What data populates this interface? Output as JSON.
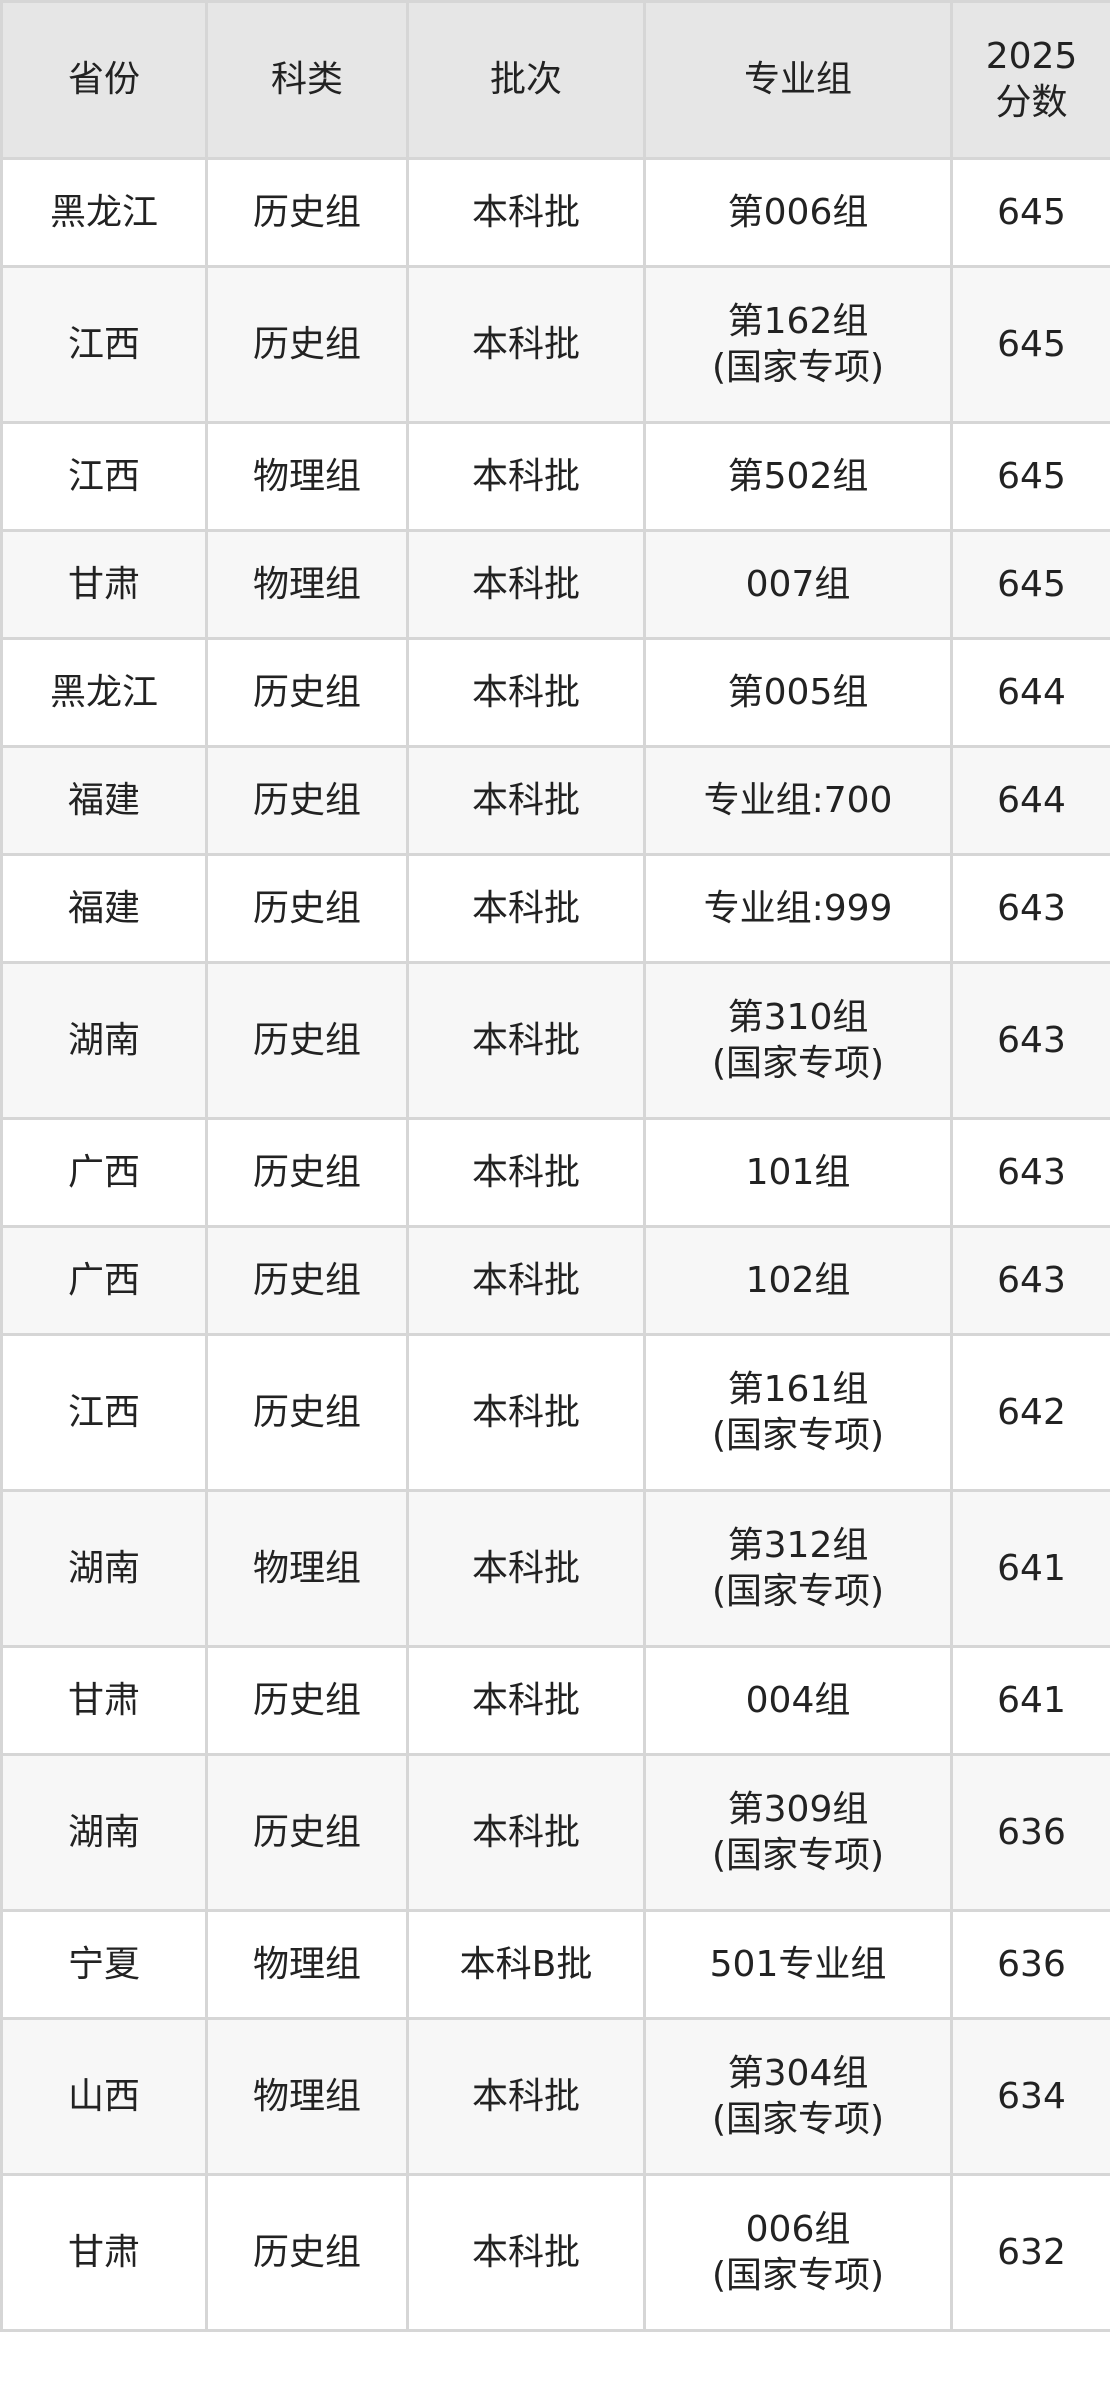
{
  "headers": [
    "省份",
    "科类",
    "批次",
    "专业组",
    "2025\n分数"
  ],
  "header_score_line1": "2025",
  "header_score_line2": "分数",
  "rows": [
    {
      "province": "黑龙江",
      "subject": "历史组",
      "batch": "本科批",
      "group": "第006组",
      "group_note": "",
      "score": "645"
    },
    {
      "province": "江西",
      "subject": "历史组",
      "batch": "本科批",
      "group": "第162组",
      "group_note": "(国家专项)",
      "score": "645"
    },
    {
      "province": "江西",
      "subject": "物理组",
      "batch": "本科批",
      "group": "第502组",
      "group_note": "",
      "score": "645"
    },
    {
      "province": "甘肃",
      "subject": "物理组",
      "batch": "本科批",
      "group": "007组",
      "group_note": "",
      "score": "645"
    },
    {
      "province": "黑龙江",
      "subject": "历史组",
      "batch": "本科批",
      "group": "第005组",
      "group_note": "",
      "score": "644"
    },
    {
      "province": "福建",
      "subject": "历史组",
      "batch": "本科批",
      "group": "专业组:700",
      "group_note": "",
      "score": "644"
    },
    {
      "province": "福建",
      "subject": "历史组",
      "batch": "本科批",
      "group": "专业组:999",
      "group_note": "",
      "score": "643"
    },
    {
      "province": "湖南",
      "subject": "历史组",
      "batch": "本科批",
      "group": "第310组",
      "group_note": "(国家专项)",
      "score": "643"
    },
    {
      "province": "广西",
      "subject": "历史组",
      "batch": "本科批",
      "group": "101组",
      "group_note": "",
      "score": "643"
    },
    {
      "province": "广西",
      "subject": "历史组",
      "batch": "本科批",
      "group": "102组",
      "group_note": "",
      "score": "643"
    },
    {
      "province": "江西",
      "subject": "历史组",
      "batch": "本科批",
      "group": "第161组",
      "group_note": "(国家专项)",
      "score": "642"
    },
    {
      "province": "湖南",
      "subject": "物理组",
      "batch": "本科批",
      "group": "第312组",
      "group_note": "(国家专项)",
      "score": "641"
    },
    {
      "province": "甘肃",
      "subject": "历史组",
      "batch": "本科批",
      "group": "004组",
      "group_note": "",
      "score": "641"
    },
    {
      "province": "湖南",
      "subject": "历史组",
      "batch": "本科批",
      "group": "第309组",
      "group_note": "(国家专项)",
      "score": "636"
    },
    {
      "province": "宁夏",
      "subject": "物理组",
      "batch": "本科B批",
      "group": "501专业组",
      "group_note": "",
      "score": "636"
    },
    {
      "province": "山西",
      "subject": "物理组",
      "batch": "本科批",
      "group": "第304组",
      "group_note": "(国家专项)",
      "score": "634"
    },
    {
      "province": "甘肃",
      "subject": "历史组",
      "batch": "本科批",
      "group": "006组",
      "group_note": "(国家专项)",
      "score": "632"
    }
  ]
}
